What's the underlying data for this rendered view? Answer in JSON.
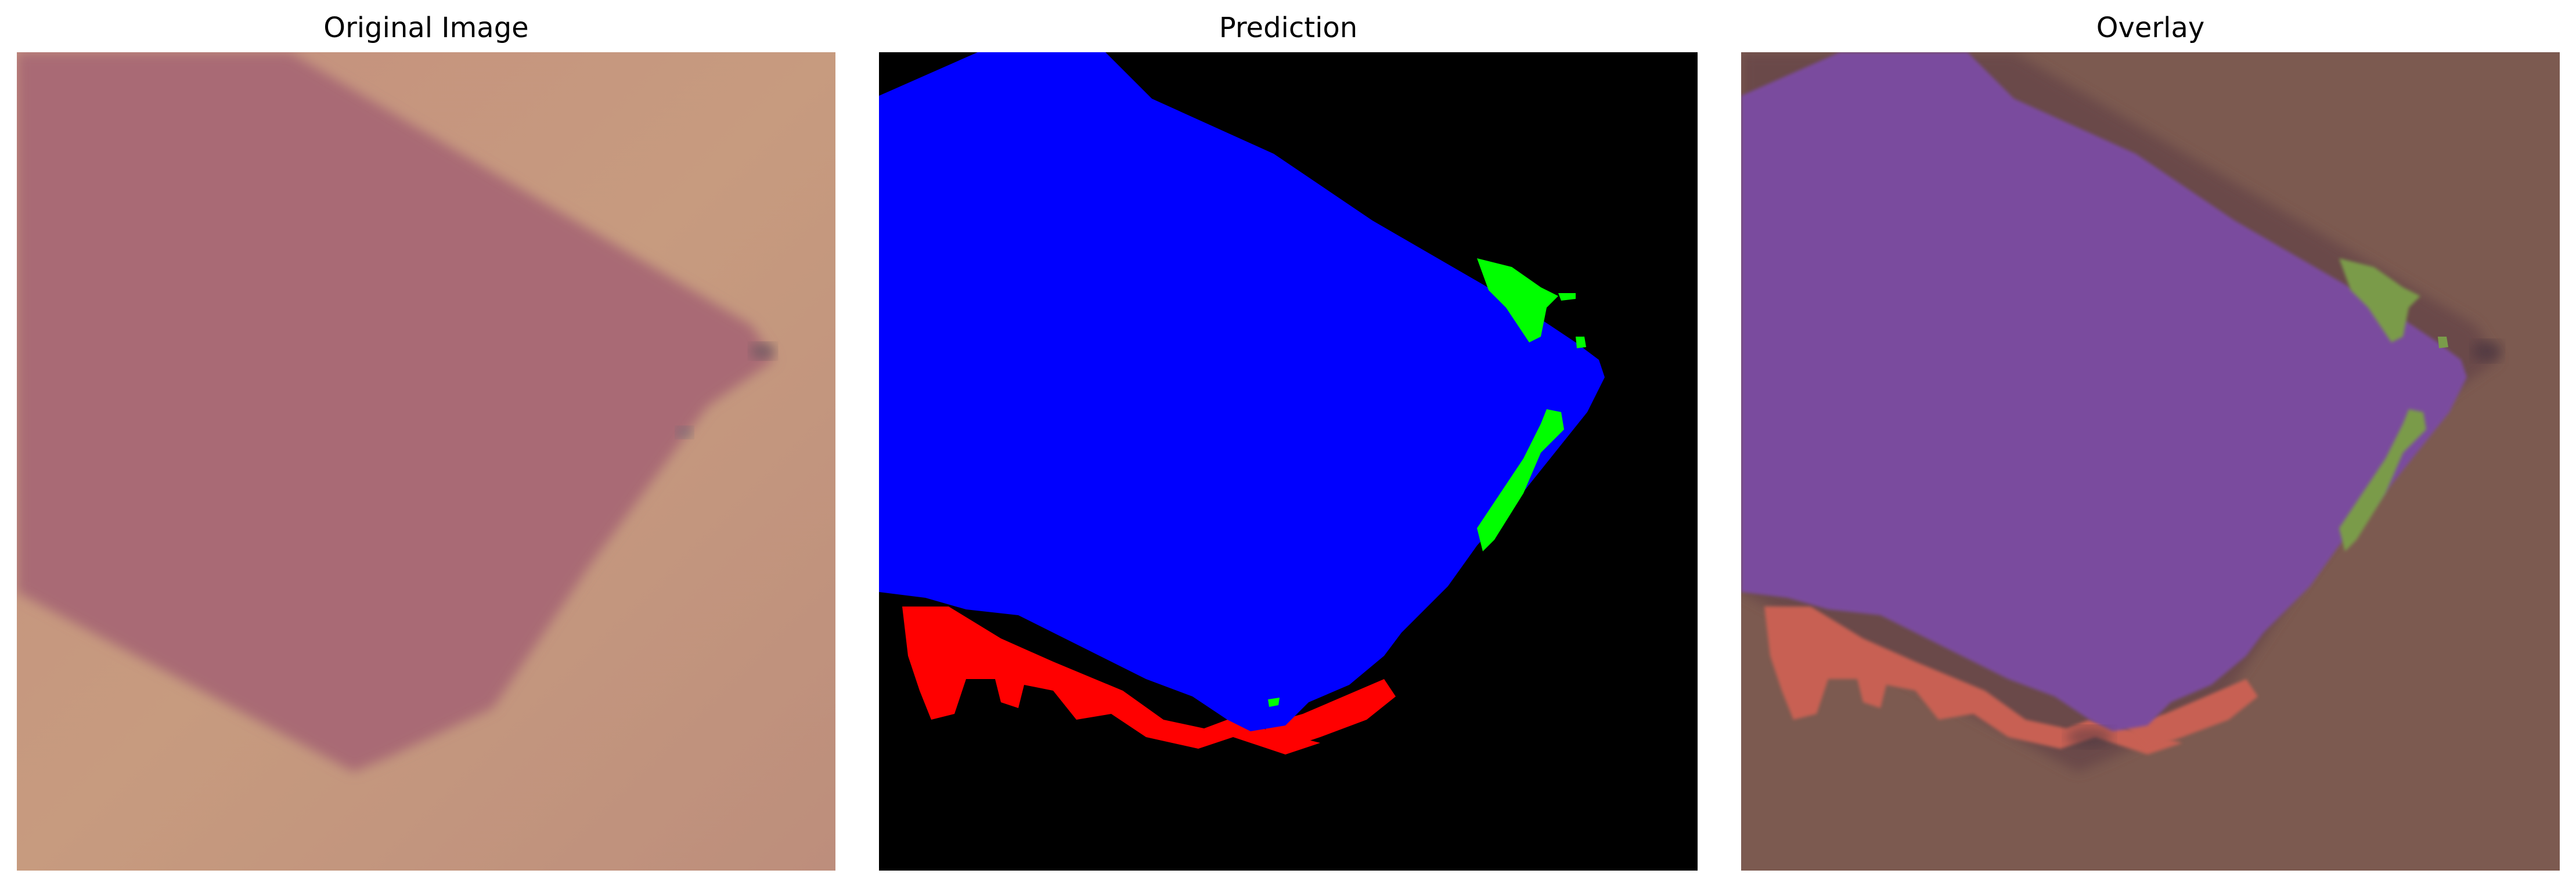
{
  "panels": [
    {
      "title": "Original Image"
    },
    {
      "title": "Prediction"
    },
    {
      "title": "Overlay"
    }
  ],
  "colors": {
    "background_original": "#c59a82",
    "flake_original": "#a96b74",
    "prediction_background": "#000000",
    "class_blue": "#0000ff",
    "class_red": "#ff0000",
    "class_green": "#00ff00",
    "overlay_background": "#7c5a50",
    "overlay_blue": "#7a4c9e",
    "overlay_red": "#c86052",
    "overlay_green": "#7a9b4a"
  }
}
